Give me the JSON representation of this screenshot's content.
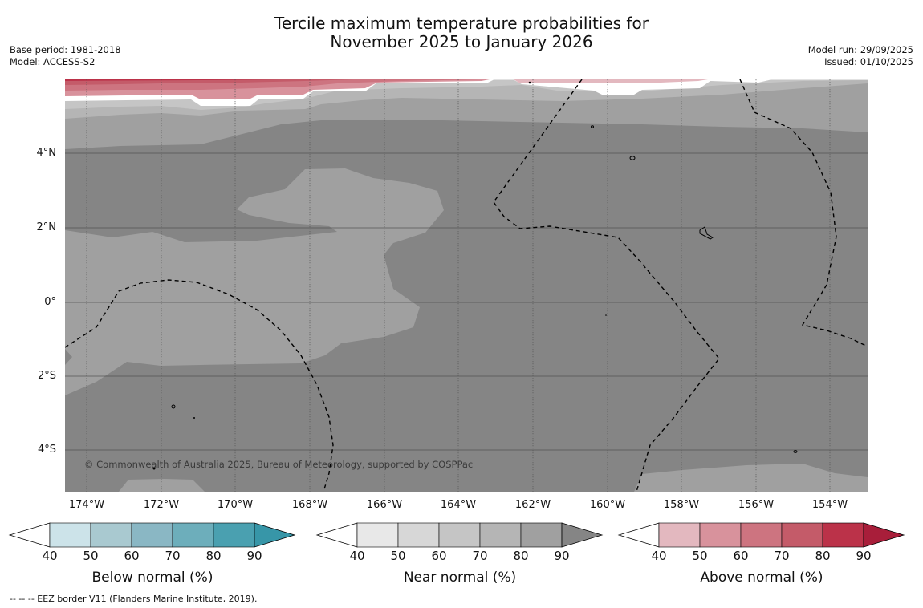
{
  "title_line1": "Tercile maximum temperature probabilities for",
  "title_line2": "November 2025 to January 2026",
  "meta_left": {
    "base_period": "Base period: 1981-2018",
    "model": "Model: ACCESS-S2"
  },
  "meta_right": {
    "model_run": "Model run: 29/09/2025",
    "issued": "Issued: 01/10/2025"
  },
  "lat_labels": [
    "4°N",
    "2°N",
    "0°",
    "2°S",
    "4°S"
  ],
  "lon_labels": [
    "174°W",
    "172°W",
    "170°W",
    "168°W",
    "166°W",
    "164°W",
    "162°W",
    "160°W",
    "158°W",
    "156°W",
    "154°W"
  ],
  "copyright": "© Commonwealth of Australia 2025, Bureau of Meteorology, supported by COSPPac",
  "colorbars": {
    "below": {
      "label": "Below normal (%)",
      "ticks": [
        "40",
        "50",
        "60",
        "70",
        "80",
        "90"
      ],
      "colors": [
        "#ffffff",
        "#cce3e9",
        "#a9c9d0",
        "#8ab7c4",
        "#6daebb",
        "#4aa0b0",
        "#3796a8"
      ]
    },
    "near": {
      "label": "Near normal (%)",
      "ticks": [
        "40",
        "50",
        "60",
        "70",
        "80",
        "90"
      ],
      "colors": [
        "#ffffff",
        "#e8e8e8",
        "#d7d7d7",
        "#c5c5c5",
        "#b5b5b5",
        "#a0a0a0",
        "#858585"
      ]
    },
    "above": {
      "label": "Above normal (%)",
      "ticks": [
        "40",
        "50",
        "60",
        "70",
        "80",
        "90"
      ],
      "colors": [
        "#ffffff",
        "#e3b8bf",
        "#d8929c",
        "#cd7480",
        "#c45b69",
        "#bb3249",
        "#a81e3a"
      ]
    }
  },
  "footer": "--  --  -- EEZ border V11 (Flanders Marine Institute, 2019)."
}
